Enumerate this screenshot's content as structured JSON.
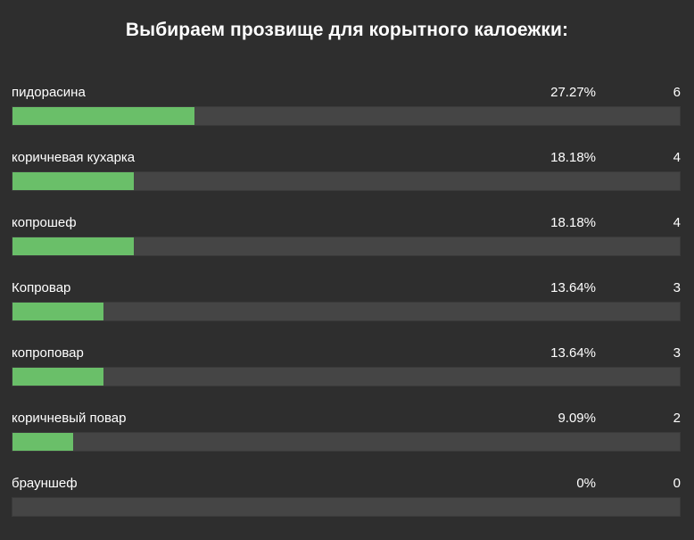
{
  "poll": {
    "title": "Выбираем прозвище для корытного калоежки:",
    "accent_color": "#6abf69",
    "options": [
      {
        "label": "пидорасина",
        "percent": "27.27%",
        "count": "6",
        "fraction": 0.2727
      },
      {
        "label": "коричневая кухарка",
        "percent": "18.18%",
        "count": "4",
        "fraction": 0.1818
      },
      {
        "label": "копрошеф",
        "percent": "18.18%",
        "count": "4",
        "fraction": 0.1818
      },
      {
        "label": "Копровар",
        "percent": "13.64%",
        "count": "3",
        "fraction": 0.1364
      },
      {
        "label": "копроповар",
        "percent": "13.64%",
        "count": "3",
        "fraction": 0.1364
      },
      {
        "label": "коричневый повар",
        "percent": "9.09%",
        "count": "2",
        "fraction": 0.0909
      },
      {
        "label": "брауншеф",
        "percent": "0%",
        "count": "0",
        "fraction": 0
      }
    ]
  }
}
